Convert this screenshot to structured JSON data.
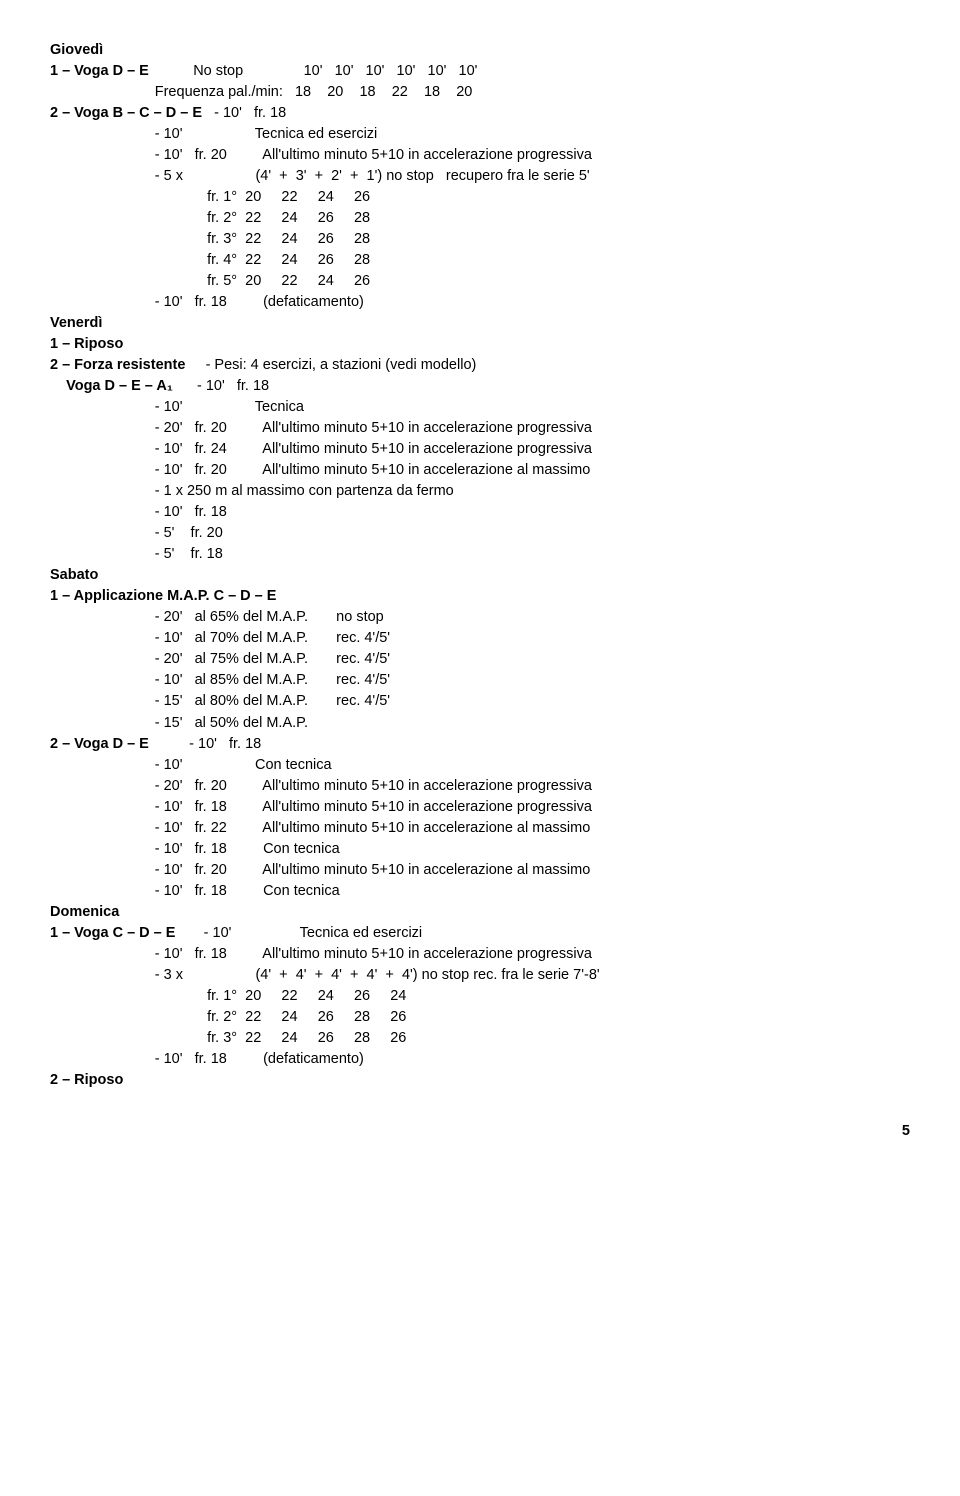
{
  "giovedi": {
    "title": "Giovedì",
    "s1": {
      "label": "1 – Voga D – E",
      "r1": "No stop               10'   10'   10'   10'   10'   10'",
      "r2": "Frequenza pal./min:   18    20    18    22    18    20"
    },
    "s2": {
      "label": "2 – Voga B – C – D – E",
      "fr18": "- 10'   fr. 18",
      "tecnica": "- 10'                  Tecnica ed esercizi",
      "fr20": "- 10'   fr. 20         All'ultimo minuto 5+10 in accelerazione progressiva",
      "x5": "- 5 x                  (4'  +  3'  +  2'  +  1') no stop   recupero fra le serie 5'",
      "t1": "             fr. 1°  20     22     24     26",
      "t2": "             fr. 2°  22     24     26     28",
      "t3": "             fr. 3°  22     24     26     28",
      "t4": "             fr. 4°  22     24     26     28",
      "t5": "             fr. 5°  20     22     24     26",
      "def": "- 10'   fr. 18         (defaticamento)"
    }
  },
  "venerdi": {
    "title": "Venerdì",
    "s1": {
      "label": "1 – Riposo"
    },
    "s2": {
      "label": "2 – Forza resistente",
      "pesi": "- Pesi: 4 esercizi, a stazioni (vedi modello)"
    },
    "voga": {
      "label": "    Voga D – E – A₁",
      "r1": "- 10'   fr. 18",
      "r2": "- 10'                  Tecnica",
      "r3": "- 20'   fr. 20         All'ultimo minuto 5+10 in accelerazione progressiva",
      "r4": "- 10'   fr. 24         All'ultimo minuto 5+10 in accelerazione progressiva",
      "r5": "- 10'   fr. 20         All'ultimo minuto 5+10 in accelerazione al massimo",
      "r6": "- 1 x 250 m al massimo con partenza da fermo",
      "r7": "- 10'   fr. 18",
      "r8": "- 5'    fr. 20",
      "r9": "- 5'    fr. 18"
    }
  },
  "sabato": {
    "title": "Sabato",
    "s1": {
      "label": "1 – Applicazione M.A.P. C – D – E",
      "r1": "- 20'   al 65% del M.A.P.       no stop",
      "r2": "- 10'   al 70% del M.A.P.       rec. 4'/5'",
      "r3": "- 20'   al 75% del M.A.P.       rec. 4'/5'",
      "r4": "- 10'   al 85% del M.A.P.       rec. 4'/5'",
      "r5": "- 15'   al 80% del M.A.P.       rec. 4'/5'",
      "r6": "- 15'   al 50% del M.A.P."
    },
    "s2": {
      "label": "2 – Voga D – E",
      "r1": "- 10'   fr. 18",
      "r2": "- 10'                  Con tecnica",
      "r3": "- 20'   fr. 20         All'ultimo minuto 5+10 in accelerazione progressiva",
      "r4": "- 10'   fr. 18         All'ultimo minuto 5+10 in accelerazione progressiva",
      "r5": "- 10'   fr. 22         All'ultimo minuto 5+10 in accelerazione al massimo",
      "r6": "- 10'   fr. 18         Con tecnica",
      "r7": "- 10'   fr. 20         All'ultimo minuto 5+10 in accelerazione al massimo",
      "r8": "- 10'   fr. 18         Con tecnica"
    }
  },
  "domenica": {
    "title": "Domenica",
    "s1": {
      "label": "1 – Voga C – D – E",
      "r1": " - 10'                 Tecnica ed esercizi",
      "r2": "- 10'   fr. 18         All'ultimo minuto 5+10 in accelerazione progressiva",
      "r3": "- 3 x                  (4'  +  4'  +  4'  +  4'  +  4') no stop rec. fra le serie 7'-8'",
      "t1": "             fr. 1°  20     22     24     26     24",
      "t2": "             fr. 2°  22     24     26     28     26",
      "t3": "             fr. 3°  22     24     26     28     26",
      "def": "- 10'   fr. 18         (defaticamento)"
    },
    "s2": {
      "label": "2 – Riposo"
    }
  },
  "page": "5"
}
